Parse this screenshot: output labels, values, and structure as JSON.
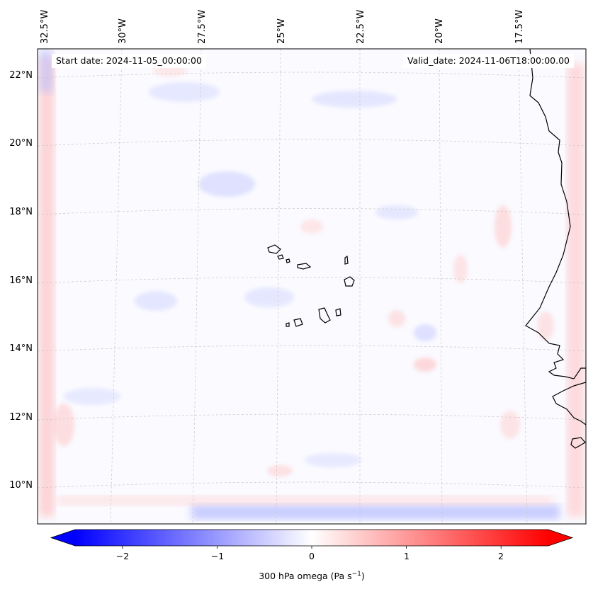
{
  "map": {
    "title": "",
    "start_label": "Start date: 2024-11-05_00:00:00",
    "valid_label": "Valid_date: 2024-11-06T18:00:00.00",
    "lon_ticks": [
      "32.5°W",
      "30°W",
      "27.5°W",
      "25°W",
      "22.5°W",
      "20°W",
      "17.5°W"
    ],
    "lat_ticks": [
      "22°N",
      "20°N",
      "18°N",
      "16°N",
      "14°N",
      "12°N",
      "10°N"
    ],
    "extent": {
      "lon_min": -32.7,
      "lon_max": -15.3,
      "lat_min": 8.9,
      "lat_max": 22.8
    },
    "features": [
      "Cabo Verde islands",
      "West African coastline (Senegal, Gambia, Guinea-Bissau)"
    ]
  },
  "colorbar": {
    "label_main": "300 hPa omega (Pa s",
    "label_exp": "−1",
    "label_end": ")",
    "ticks": [
      "−2",
      "−1",
      "0",
      "1",
      "2"
    ],
    "tick_values": [
      -2,
      -1,
      0,
      1,
      2
    ],
    "vmin": -2.5,
    "vmax": 2.5,
    "extend": "both",
    "cmap": "bwr",
    "colors": {
      "low": "#0000ff",
      "mid": "#ffffff",
      "high": "#ff0000"
    }
  }
}
